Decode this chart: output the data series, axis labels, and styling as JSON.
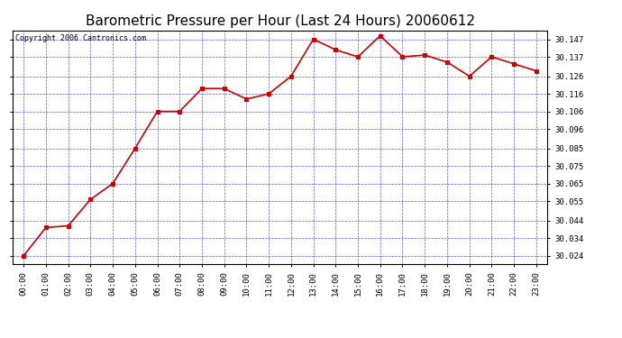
{
  "title": "Barometric Pressure per Hour (Last 24 Hours) 20060612",
  "copyright_text": "Copyright 2006 Cantronics.com",
  "hours": [
    "00:00",
    "01:00",
    "02:00",
    "03:00",
    "04:00",
    "05:00",
    "06:00",
    "07:00",
    "08:00",
    "09:00",
    "10:00",
    "11:00",
    "12:00",
    "13:00",
    "14:00",
    "15:00",
    "16:00",
    "17:00",
    "18:00",
    "19:00",
    "20:00",
    "21:00",
    "22:00",
    "23:00"
  ],
  "values": [
    30.024,
    30.04,
    30.041,
    30.056,
    30.065,
    30.085,
    30.106,
    30.106,
    30.119,
    30.119,
    30.113,
    30.116,
    30.126,
    30.147,
    30.141,
    30.137,
    30.149,
    30.137,
    30.138,
    30.134,
    30.126,
    30.137,
    30.133,
    30.129
  ],
  "line_color": "#cc0000",
  "marker_color": "#cc0000",
  "marker": "s",
  "marker_size": 2.5,
  "line_width": 1.2,
  "bg_color": "#ffffff",
  "plot_bg_color": "#ffffff",
  "grid_color": "#3333cc",
  "grid_style": "--",
  "grid_alpha": 0.8,
  "grid_linewidth": 0.5,
  "ylim_min": 30.0195,
  "ylim_max": 30.152,
  "yticks": [
    30.024,
    30.034,
    30.044,
    30.055,
    30.065,
    30.075,
    30.085,
    30.096,
    30.106,
    30.116,
    30.126,
    30.137,
    30.147
  ],
  "title_fontsize": 11,
  "tick_fontsize": 6.5,
  "copyright_fontsize": 6,
  "border_color": "#000000"
}
